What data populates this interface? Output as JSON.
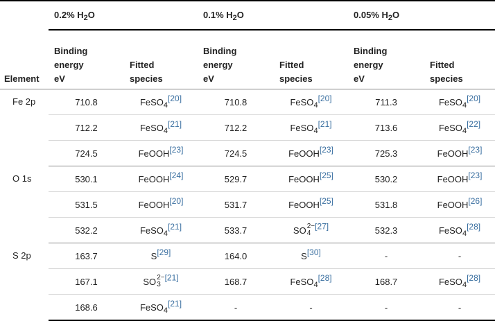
{
  "header": {
    "groups": [
      {
        "pre": "0.2% H",
        "sub": "2",
        "post": "O"
      },
      {
        "pre": "0.1% H",
        "sub": "2",
        "post": "O"
      },
      {
        "pre": "0.05% H",
        "sub": "2",
        "post": "O"
      }
    ],
    "element_label": "Element",
    "be_label_1": "Binding",
    "be_label_2": "energy",
    "be_label_3": "eV",
    "fs_label_1": "Fitted",
    "fs_label_2": "species"
  },
  "rows": [
    {
      "element": "Fe 2p",
      "c": [
        {
          "be": "710.8",
          "sp": "FeSO",
          "spsub": "4",
          "ref": "[20]"
        },
        {
          "be": "710.8",
          "sp": "FeSO",
          "spsub": "4",
          "ref": "[20]"
        },
        {
          "be": "711.3",
          "sp": "FeSO",
          "spsub": "4",
          "ref": "[20]"
        }
      ]
    },
    {
      "element": "",
      "c": [
        {
          "be": "712.2",
          "sp": "FeSO",
          "spsub": "4",
          "ref": "[21]"
        },
        {
          "be": "712.2",
          "sp": "FeSO",
          "spsub": "4",
          "ref": "[21]"
        },
        {
          "be": "713.6",
          "sp": "FeSO",
          "spsub": "4",
          "ref": "[22]"
        }
      ]
    },
    {
      "element": "",
      "c": [
        {
          "be": "724.5",
          "sp": "FeOOH",
          "spsub": "",
          "ref": "[23]"
        },
        {
          "be": "724.5",
          "sp": "FeOOH",
          "spsub": "",
          "ref": "[23]"
        },
        {
          "be": "725.3",
          "sp": "FeOOH",
          "spsub": "",
          "ref": "[23]"
        }
      ]
    },
    {
      "element": "O 1s",
      "c": [
        {
          "be": "530.1",
          "sp": "FeOOH",
          "spsub": "",
          "ref": "[24]"
        },
        {
          "be": "529.7",
          "sp": "FeOOH",
          "spsub": "",
          "ref": "[25]"
        },
        {
          "be": "530.2",
          "sp": "FeOOH",
          "spsub": "",
          "ref": "[23]"
        }
      ]
    },
    {
      "element": "",
      "c": [
        {
          "be": "531.5",
          "sp": "FeOOH",
          "spsub": "",
          "ref": "[20]"
        },
        {
          "be": "531.7",
          "sp": "FeOOH",
          "spsub": "",
          "ref": "[25]"
        },
        {
          "be": "531.8",
          "sp": "FeOOH",
          "spsub": "",
          "ref": "[26]"
        }
      ]
    },
    {
      "element": "",
      "c": [
        {
          "be": "532.2",
          "sp": "FeSO",
          "spsub": "4",
          "ref": "[21]"
        },
        {
          "be": "533.7",
          "ion": {
            "base": "SO",
            "sub": "4",
            "sup": "2−"
          },
          "ref": "[27]"
        },
        {
          "be": "532.3",
          "sp": "FeSO",
          "spsub": "4",
          "ref": "[28]"
        }
      ]
    },
    {
      "element": "S 2p",
      "c": [
        {
          "be": "163.7",
          "sp": "S",
          "spsub": "",
          "ref": "[29]"
        },
        {
          "be": "164.0",
          "sp": "S",
          "spsub": "",
          "ref": "[30]"
        },
        {
          "be": "-",
          "sp": "-",
          "spsub": "",
          "ref": ""
        }
      ]
    },
    {
      "element": "",
      "c": [
        {
          "be": "167.1",
          "ion": {
            "base": "SO",
            "sub": "3",
            "sup": "2−"
          },
          "ref": "[21]"
        },
        {
          "be": "168.7",
          "sp": "FeSO",
          "spsub": "4",
          "ref": "[28]"
        },
        {
          "be": "168.7",
          "sp": "FeSO",
          "spsub": "4",
          "ref": "[28]"
        }
      ]
    },
    {
      "element": "",
      "c": [
        {
          "be": "168.6",
          "sp": "FeSO",
          "spsub": "4",
          "ref": "[21]"
        },
        {
          "be": "-",
          "sp": "-",
          "spsub": "",
          "ref": ""
        },
        {
          "be": "-",
          "sp": "-",
          "spsub": "",
          "ref": ""
        }
      ]
    }
  ]
}
